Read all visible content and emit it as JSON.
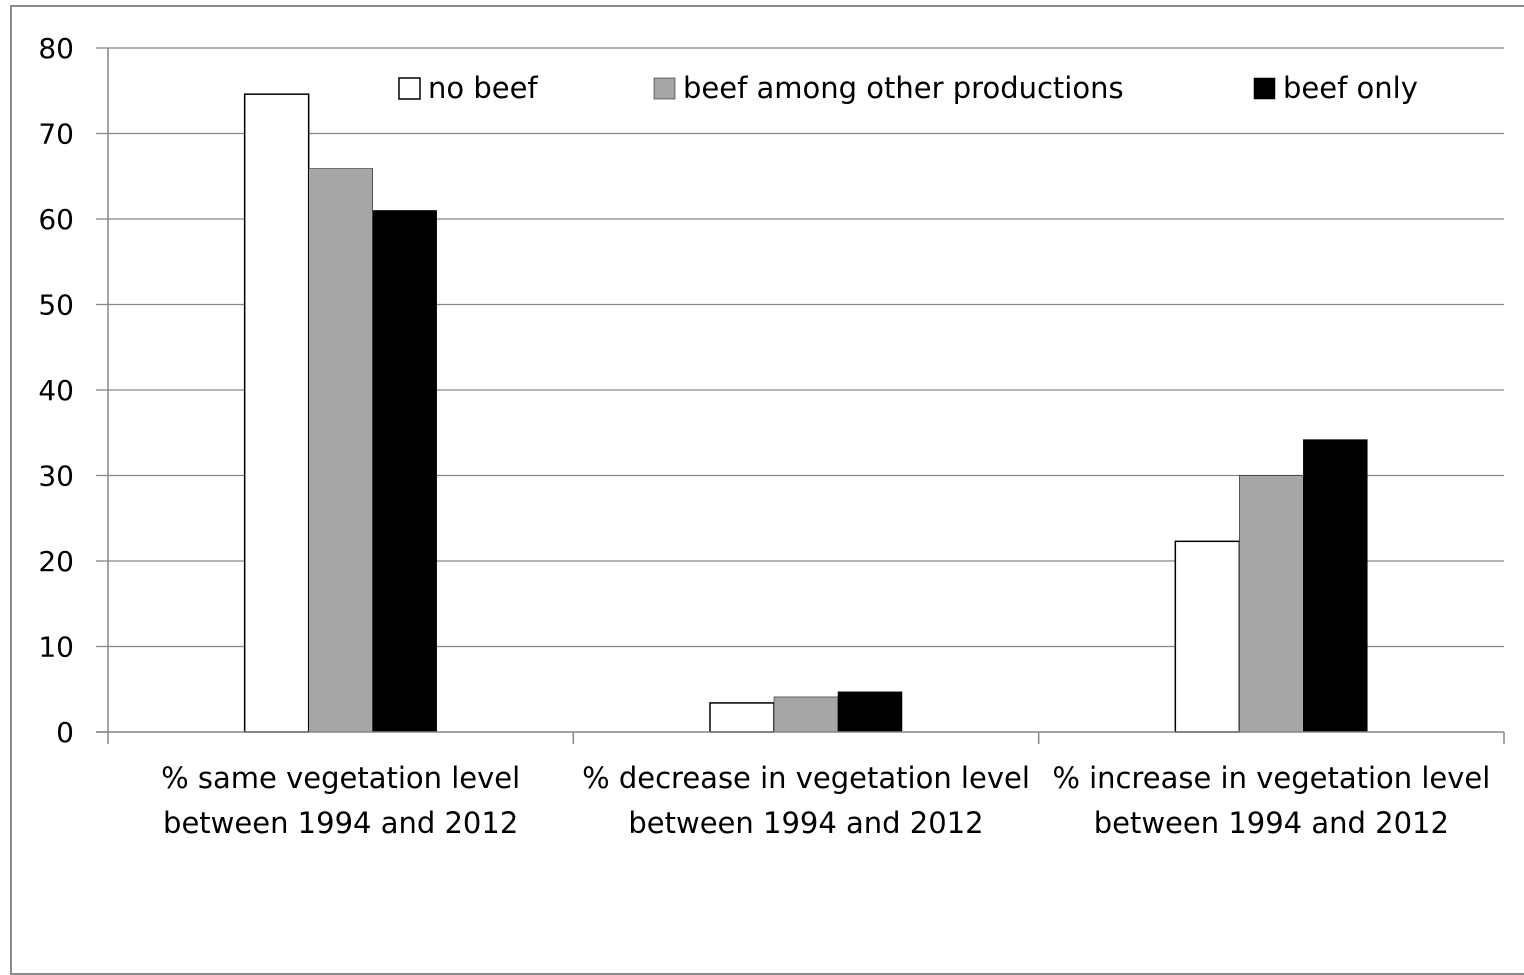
{
  "chart_data": {
    "type": "bar",
    "categories": [
      [
        "% same vegetation level",
        "between 1994 and 2012"
      ],
      [
        "% decrease in vegetation level",
        "between 1994 and 2012"
      ],
      [
        "% increase in vegetation level",
        "between 1994 and 2012"
      ]
    ],
    "series": [
      {
        "name": "no beef",
        "color": "#ffffff",
        "values": [
          74.6,
          3.4,
          22.3
        ]
      },
      {
        "name": "beef among other productions",
        "color": "#a6a6a6",
        "values": [
          65.9,
          4.1,
          30.0
        ]
      },
      {
        "name": "beef only",
        "color": "#000000",
        "values": [
          61.0,
          4.7,
          34.2
        ]
      }
    ],
    "yticks": [
      "0",
      "10",
      "20",
      "30",
      "40",
      "50",
      "60",
      "70",
      "80"
    ],
    "ylim": [
      0,
      80
    ],
    "grid": true,
    "legend_position": "top",
    "title": "",
    "xlabel": "",
    "ylabel": ""
  }
}
